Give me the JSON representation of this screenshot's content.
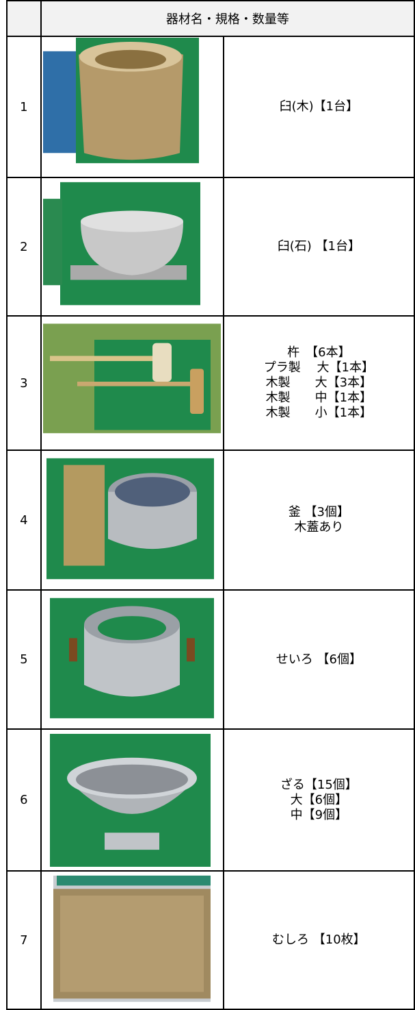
{
  "header": {
    "title": "器材名・規格・数量等"
  },
  "rows": [
    {
      "number": "1",
      "lines": [
        "臼(木)【1台】"
      ]
    },
    {
      "number": "2",
      "lines": [
        "臼(石) 【1台】"
      ]
    },
    {
      "number": "3",
      "lines": [
        "杵　【6本】",
        "プラ製　 大【1本】",
        "木製　　大【3本】",
        "木製　　中【1本】",
        "木製　　小【1本】"
      ]
    },
    {
      "number": "4",
      "lines": [
        "釜 【3個】",
        "木蓋あり"
      ]
    },
    {
      "number": "5",
      "lines": [
        "せいろ 【6個】"
      ]
    },
    {
      "number": "6",
      "lines": [
        "ざる【15個】",
        "大【6個】",
        "中【9個】"
      ]
    },
    {
      "number": "7",
      "lines": [
        "むしろ 【10枚】"
      ]
    }
  ]
}
